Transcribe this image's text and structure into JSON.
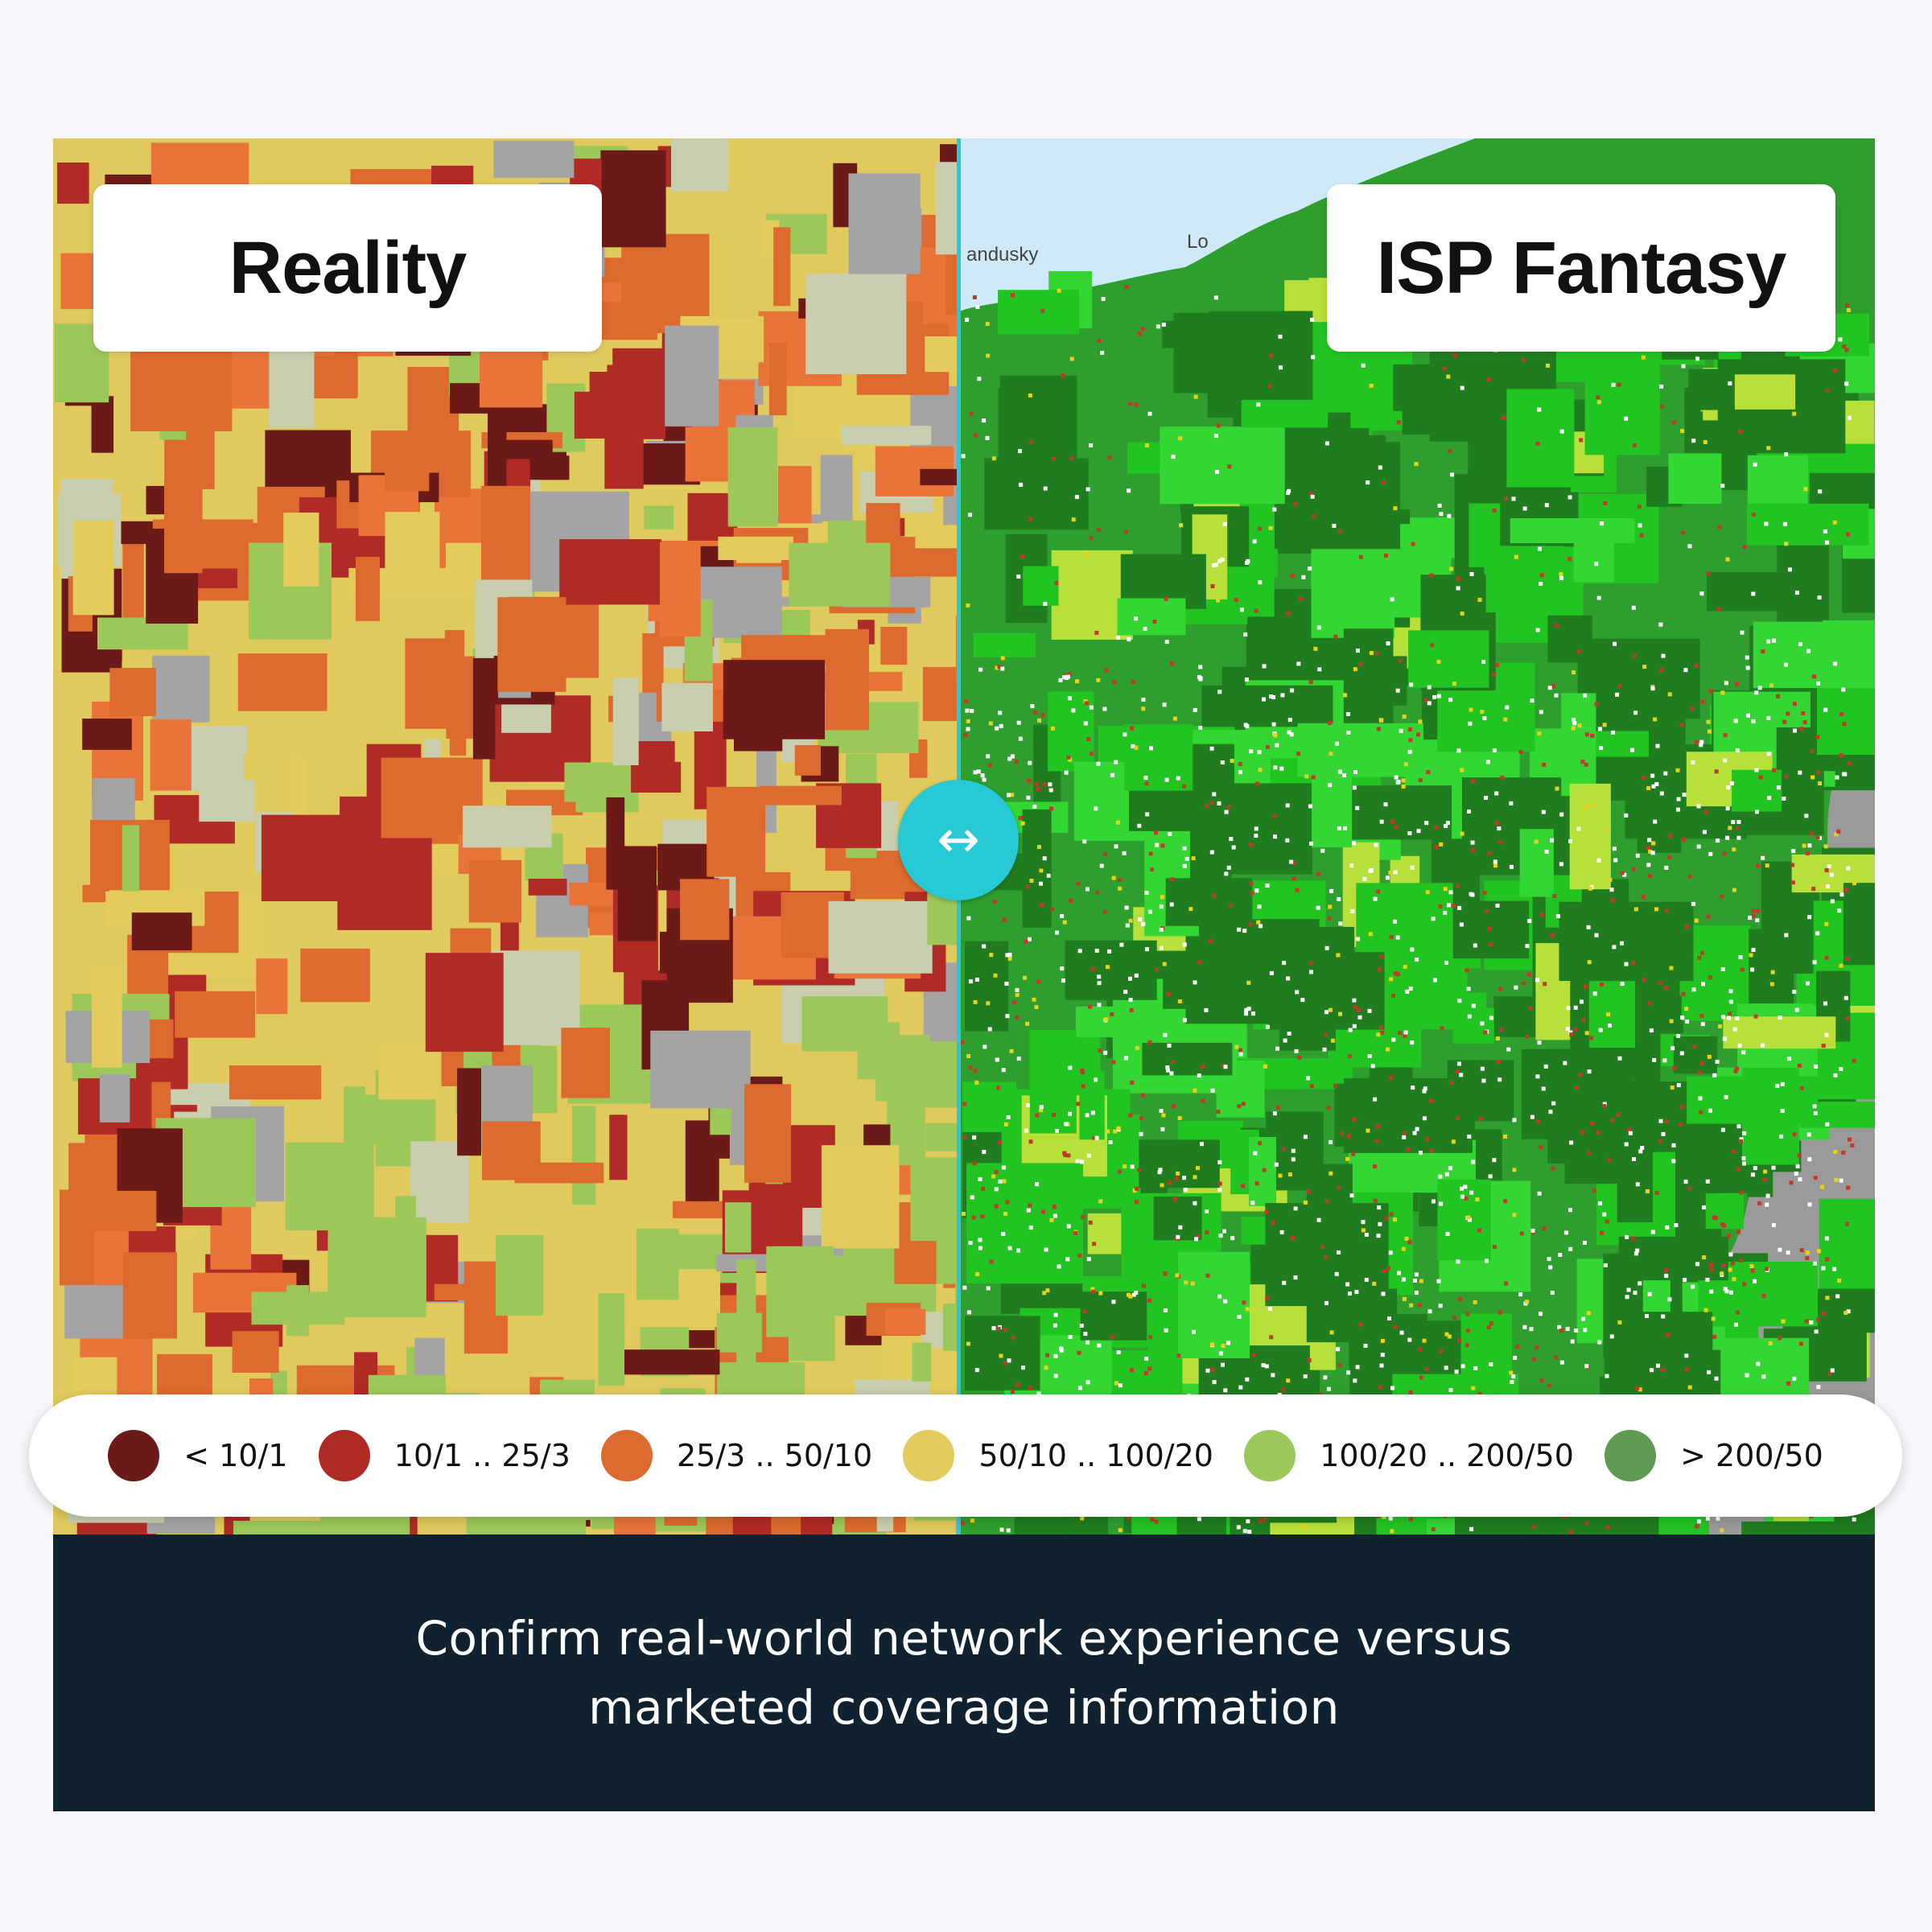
{
  "labels": {
    "left": "Reality",
    "right": "ISP Fantasy"
  },
  "map_labels": {
    "town1": "andusky",
    "town2": "Lo"
  },
  "slider": {
    "icon": "left-right-arrows-icon",
    "glyph": "↔"
  },
  "legend": {
    "items": [
      {
        "label": "< 10/1",
        "color": "#6b1a18"
      },
      {
        "label": "10/1 .. 25/3",
        "color": "#b02a26"
      },
      {
        "label": "25/3 .. 50/10",
        "color": "#dd6a2e"
      },
      {
        "label": "50/10 .. 100/20",
        "color": "#e3cb5c"
      },
      {
        "label": "100/20 .. 200/50",
        "color": "#9cc85a"
      },
      {
        "label": "> 200/50",
        "color": "#5e9a52"
      }
    ]
  },
  "caption": {
    "text": "Confirm real-world network experience versus marketed coverage information"
  },
  "colors": {
    "accent": "#27c9d6",
    "caption_bg": "#10212f",
    "page_bg": "#f6f6fb"
  }
}
